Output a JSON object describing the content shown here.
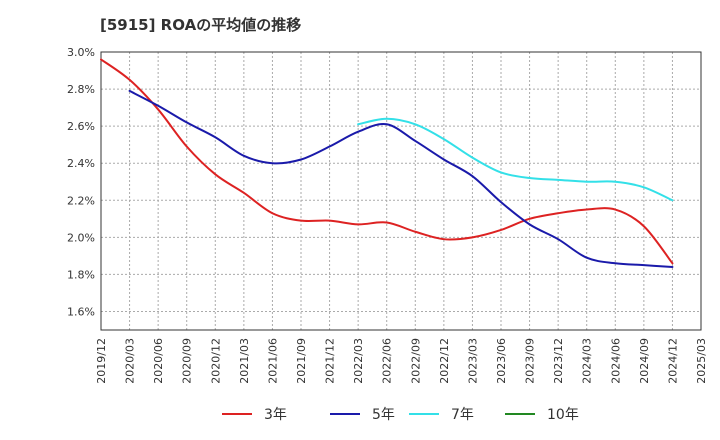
{
  "chart_data": {
    "type": "line",
    "title": "[5915]  ROAの平均値の推移",
    "xlabel": "",
    "ylabel": "",
    "ylim": [
      1.5,
      3.0
    ],
    "y_ticks": [
      {
        "value": 3.0,
        "label": "3.0%"
      },
      {
        "value": 2.8,
        "label": "2.8%"
      },
      {
        "value": 2.6,
        "label": "2.6%"
      },
      {
        "value": 2.4,
        "label": "2.4%"
      },
      {
        "value": 2.2,
        "label": "2.2%"
      },
      {
        "value": 2.0,
        "label": "2.0%"
      },
      {
        "value": 1.8,
        "label": "1.8%"
      },
      {
        "value": 1.6,
        "label": "1.6%"
      }
    ],
    "x_categories": [
      "2019/12",
      "2020/03",
      "2020/06",
      "2020/09",
      "2020/12",
      "2021/03",
      "2021/06",
      "2021/09",
      "2021/12",
      "2022/03",
      "2022/06",
      "2022/09",
      "2022/12",
      "2023/03",
      "2023/06",
      "2023/09",
      "2023/12",
      "2024/03",
      "2024/06",
      "2024/09",
      "2024/12",
      "2025/03"
    ],
    "grid": true,
    "legend_position": "bottom",
    "series": [
      {
        "name": "3年",
        "color": "#dd2222",
        "values": [
          2.96,
          2.85,
          2.69,
          2.49,
          2.34,
          2.24,
          2.13,
          2.09,
          2.09,
          2.07,
          2.08,
          2.03,
          1.99,
          2.0,
          2.04,
          2.1,
          2.13,
          2.15,
          2.15,
          2.06,
          1.86,
          null
        ]
      },
      {
        "name": "5年",
        "color": "#1a1aaa",
        "values": [
          null,
          2.79,
          2.71,
          2.62,
          2.54,
          2.44,
          2.4,
          2.42,
          2.49,
          2.57,
          2.61,
          2.52,
          2.42,
          2.33,
          2.19,
          2.07,
          1.99,
          1.89,
          1.86,
          1.85,
          1.84,
          null
        ]
      },
      {
        "name": "7年",
        "color": "#33e0e8",
        "values": [
          null,
          null,
          null,
          null,
          null,
          null,
          null,
          null,
          null,
          2.61,
          2.64,
          2.61,
          2.53,
          2.43,
          2.35,
          2.32,
          2.31,
          2.3,
          2.3,
          2.27,
          2.2,
          null
        ]
      },
      {
        "name": "10年",
        "color": "#228822",
        "values": [
          null,
          null,
          null,
          null,
          null,
          null,
          null,
          null,
          null,
          null,
          null,
          null,
          null,
          null,
          null,
          null,
          null,
          null,
          null,
          null,
          null,
          null
        ]
      }
    ]
  }
}
